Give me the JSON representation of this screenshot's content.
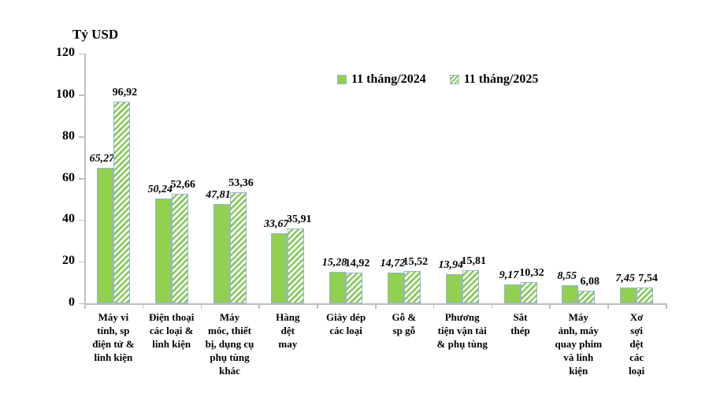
{
  "title": "Tỷ USD",
  "colors": {
    "bar_2024_green": "#92D050",
    "hatch_2025_green": "#86C95A",
    "bar_border_blue": "#95B3D7",
    "axis_grey": "#BFBFBF",
    "text": "#000000"
  },
  "legend": {
    "items": [
      {
        "label": "11 tháng/2024",
        "swatch": "solid-green-square"
      },
      {
        "label": "11 tháng/2025",
        "swatch": "green-hatched-square"
      }
    ]
  },
  "chart_data": {
    "type": "bar",
    "title": "Tỷ USD",
    "ylabel": "Tỷ USD",
    "xlabel": "",
    "ylim": [
      0,
      120
    ],
    "yticks": [
      0,
      20,
      40,
      60,
      80,
      100,
      120
    ],
    "grid": false,
    "legend_position": "top-center",
    "categories": [
      "Máy vi\ntính, sp\nđiện tử &\nlinh kiện",
      "Điện thoại\ncác loại &\nlinh kiện",
      "Máy\nmóc, thiết\nbị, dụng cụ\nphụ tùng\nkhác",
      "Hàng\ndệt\nmay",
      "Giày dép\ncác loại",
      "Gỗ &\nsp gỗ",
      "Phương\ntiện vận tải\n& phụ tùng",
      "Sắt\nthép",
      "Máy\nảnh, máy\nquay phim\nvà linh\nkiện",
      "Xơ\nsợi\ndệt\ncác\nloại"
    ],
    "series": [
      {
        "name": "11 tháng/2024",
        "values": [
          65.27,
          50.24,
          47.81,
          33.67,
          15.28,
          14.72,
          13.94,
          9.17,
          8.55,
          7.45
        ],
        "labels": [
          "65,27",
          "50,24",
          "47,81",
          "33,67",
          "15,28",
          "14,72",
          "13,94",
          "9,17",
          "8,55",
          "7,45"
        ]
      },
      {
        "name": "11 tháng/2025",
        "values": [
          96.92,
          52.66,
          53.36,
          35.91,
          14.92,
          15.52,
          15.81,
          10.32,
          6.08,
          7.54
        ],
        "labels": [
          "96,92",
          "52,66",
          "53,36",
          "35,91",
          "14,92",
          "15,52",
          "15,81",
          "10,32",
          "6,08",
          "7,54"
        ]
      }
    ]
  }
}
